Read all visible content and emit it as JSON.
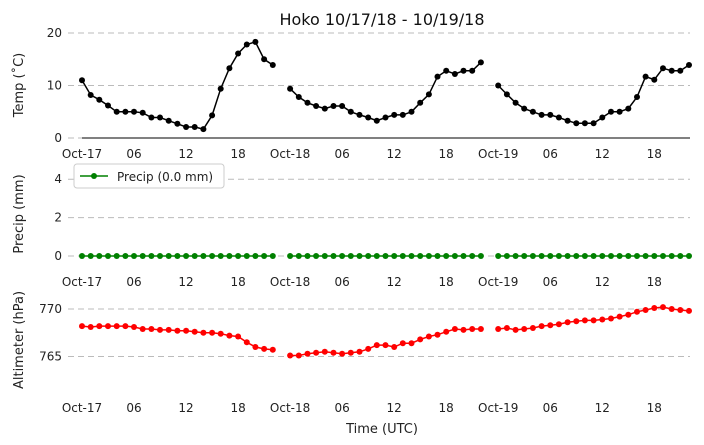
{
  "title": "Hoko 10/17/18 - 10/19/18",
  "x_hours": [
    0,
    1,
    2,
    3,
    4,
    5,
    6,
    7,
    8,
    9,
    10,
    11,
    12,
    13,
    14,
    15,
    16,
    17,
    18,
    19,
    20,
    21,
    22,
    23,
    24,
    25,
    26,
    27,
    28,
    29,
    30,
    31,
    32,
    33,
    34,
    35,
    36,
    37,
    38,
    39,
    40,
    41,
    42,
    43,
    44,
    45,
    46,
    47,
    48,
    49,
    50,
    51,
    52,
    53,
    54,
    55,
    56,
    57,
    58,
    59,
    60,
    61,
    62,
    63,
    64,
    65,
    66,
    67,
    68,
    69,
    70
  ],
  "x_tick_labels": [
    "Oct-17",
    "06",
    "12",
    "18",
    "Oct-18",
    "06",
    "12",
    "18",
    "Oct-19",
    "06",
    "12",
    "18"
  ],
  "x_tick_hours": [
    0,
    6,
    12,
    18,
    24,
    30,
    36,
    42,
    48,
    54,
    60,
    66
  ],
  "xlabel": "Time (UTC)",
  "chart_data": [
    {
      "type": "line",
      "name": "temperature",
      "ylabel": "Temp (˚C)",
      "ylim": [
        0,
        20
      ],
      "yticks": [
        0,
        10,
        20
      ],
      "grid": true,
      "color": "#000000",
      "series": [
        {
          "x": [
            0,
            1,
            2,
            3,
            4,
            5,
            6,
            7,
            8,
            9,
            10,
            11,
            12,
            13,
            14,
            15,
            16,
            17,
            18,
            19,
            20,
            21,
            22,
            23,
            24,
            25,
            26,
            27,
            28,
            29,
            30,
            31,
            32,
            33,
            34,
            35,
            36,
            37,
            38,
            39,
            40,
            41,
            42,
            43,
            44,
            45,
            46,
            47,
            48,
            49,
            50,
            51,
            52,
            53,
            54,
            55,
            56,
            57,
            58,
            59,
            60,
            61,
            62,
            63,
            64,
            65,
            66,
            67,
            68,
            69,
            70
          ],
          "values": [
            11,
            8.2,
            7.3,
            6.2,
            5,
            5,
            5,
            4.8,
            3.9,
            3.9,
            3.3,
            2.7,
            2.1,
            2.1,
            1.7,
            4.3,
            9.4,
            13.3,
            16.1,
            17.8,
            18.3,
            15,
            13.9,
            null,
            9.4,
            7.8,
            6.7,
            6.1,
            5.6,
            6.1,
            6.1,
            5,
            4.4,
            3.9,
            3.3,
            3.9,
            4.4,
            4.4,
            5,
            6.7,
            8.3,
            11.7,
            12.8,
            12.2,
            12.8,
            12.8,
            14.4,
            null,
            10,
            8.3,
            6.7,
            5.6,
            5,
            4.4,
            4.4,
            3.9,
            3.3,
            2.8,
            2.8,
            2.8,
            3.9,
            5,
            5,
            5.6,
            7.8,
            11.7,
            11.1,
            13.3,
            12.8,
            12.8,
            13.9
          ]
        }
      ]
    },
    {
      "type": "line",
      "name": "precipitation",
      "ylabel": "Precip (mm)",
      "ylim": [
        0,
        5
      ],
      "yticks": [
        0,
        2,
        4
      ],
      "grid": true,
      "color": "#008000",
      "legend": "Precip (0.0 mm)",
      "legend_position": "upper-left",
      "series": [
        {
          "x": [
            0,
            1,
            2,
            3,
            4,
            5,
            6,
            7,
            8,
            9,
            10,
            11,
            12,
            13,
            14,
            15,
            16,
            17,
            18,
            19,
            20,
            21,
            22,
            23,
            24,
            25,
            26,
            27,
            28,
            29,
            30,
            31,
            32,
            33,
            34,
            35,
            36,
            37,
            38,
            39,
            40,
            41,
            42,
            43,
            44,
            45,
            46,
            47,
            48,
            49,
            50,
            51,
            52,
            53,
            54,
            55,
            56,
            57,
            58,
            59,
            60,
            61,
            62,
            63,
            64,
            65,
            66,
            67,
            68,
            69,
            70
          ],
          "values": [
            0,
            0,
            0,
            0,
            0,
            0,
            0,
            0,
            0,
            0,
            0,
            0,
            0,
            0,
            0,
            0,
            0,
            0,
            0,
            0,
            0,
            0,
            0,
            null,
            0,
            0,
            0,
            0,
            0,
            0,
            0,
            0,
            0,
            0,
            0,
            0,
            0,
            0,
            0,
            0,
            0,
            0,
            0,
            0,
            0,
            0,
            0,
            null,
            0,
            0,
            0,
            0,
            0,
            0,
            0,
            0,
            0,
            0,
            0,
            0,
            0,
            0,
            0,
            0,
            0,
            0,
            0,
            0,
            0,
            0,
            0
          ]
        }
      ]
    },
    {
      "type": "line",
      "name": "altimeter",
      "ylabel": "Altimeter (hPa)",
      "ylim": [
        760,
        772
      ],
      "yticks": [
        765,
        770
      ],
      "grid": true,
      "color": "#ff0000",
      "series": [
        {
          "x": [
            0,
            1,
            2,
            3,
            4,
            5,
            6,
            7,
            8,
            9,
            10,
            11,
            12,
            13,
            14,
            15,
            16,
            17,
            18,
            19,
            20,
            21,
            22,
            23,
            24,
            25,
            26,
            27,
            28,
            29,
            30,
            31,
            32,
            33,
            34,
            35,
            36,
            37,
            38,
            39,
            40,
            41,
            42,
            43,
            44,
            45,
            46,
            47,
            48,
            49,
            50,
            51,
            52,
            53,
            54,
            55,
            56,
            57,
            58,
            59,
            60,
            61,
            62,
            63,
            64,
            65,
            66,
            67,
            68,
            69,
            70
          ],
          "values": [
            768.2,
            768.1,
            768.2,
            768.2,
            768.2,
            768.2,
            768.1,
            767.9,
            767.9,
            767.8,
            767.8,
            767.7,
            767.7,
            767.6,
            767.5,
            767.5,
            767.4,
            767.2,
            767.1,
            766.5,
            766,
            765.8,
            765.7,
            null,
            765.1,
            765.1,
            765.3,
            765.4,
            765.5,
            765.4,
            765.3,
            765.4,
            765.5,
            765.8,
            766.2,
            766.2,
            766,
            766.4,
            766.4,
            766.8,
            767.1,
            767.3,
            767.6,
            767.9,
            767.8,
            767.9,
            767.9,
            null,
            767.9,
            768,
            767.8,
            767.9,
            768,
            768.2,
            768.3,
            768.4,
            768.6,
            768.7,
            768.8,
            768.8,
            768.9,
            769,
            769.2,
            769.4,
            769.7,
            769.9,
            770.1,
            770.2,
            770,
            769.9,
            769.8
          ]
        }
      ]
    }
  ]
}
